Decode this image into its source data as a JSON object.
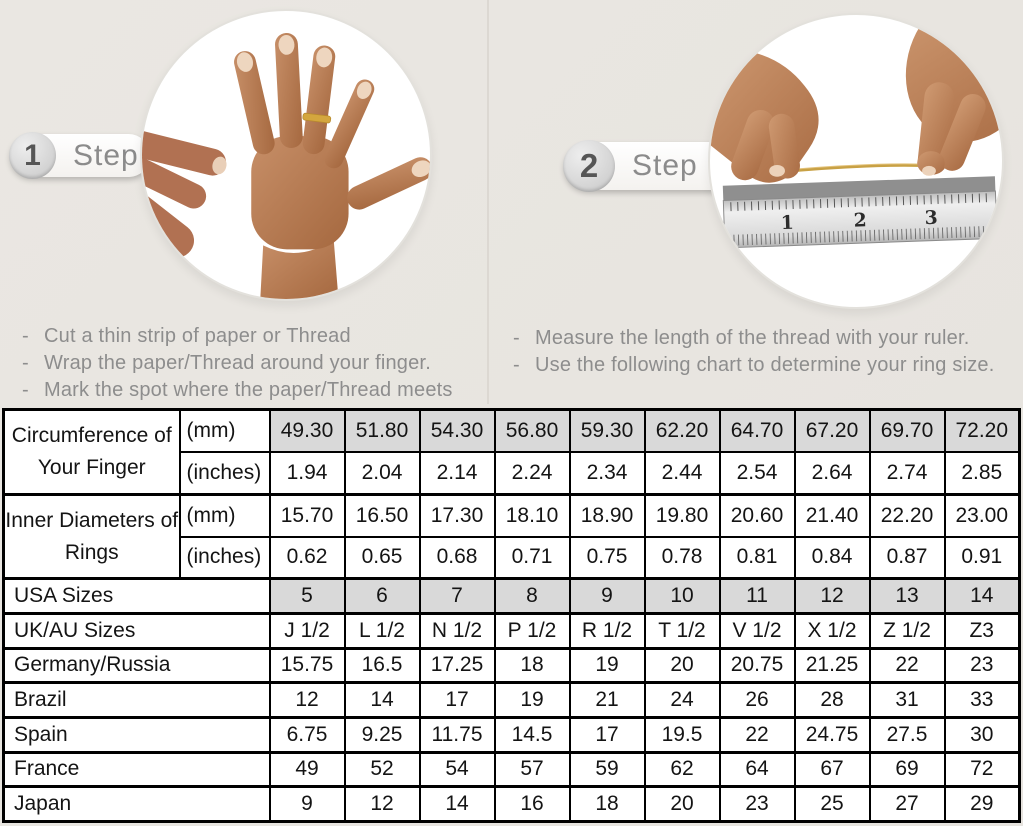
{
  "colors": {
    "background": "#e9e6e1",
    "table_border": "#000000",
    "shaded_cell": "#d9d9d9",
    "instruction_text": "#8d8d8d",
    "gold_thread": "#c8a145",
    "skin_tone": "#b5795a"
  },
  "steps": [
    {
      "number": "1",
      "label": "Step",
      "photo": "hand-with-ring-on-finger",
      "instructions": [
        "Cut a thin strip of paper or Thread",
        "Wrap the paper/Thread around your finger.",
        "Mark the spot where the paper/Thread meets"
      ]
    },
    {
      "number": "2",
      "label": "Step",
      "photo": "measuring-thread-on-ruler",
      "ruler_numbers": [
        "1",
        "2",
        "3"
      ],
      "instructions": [
        "Measure the length of the thread with your ruler.",
        "Use the following chart to determine your ring size."
      ]
    }
  ],
  "size_chart": {
    "columns": 10,
    "measure_groups": [
      {
        "label": "Circumference of Your Finger",
        "rows": [
          {
            "unit": "(mm)",
            "shaded": true,
            "values": [
              "49.30",
              "51.80",
              "54.30",
              "56.80",
              "59.30",
              "62.20",
              "64.70",
              "67.20",
              "69.70",
              "72.20"
            ]
          },
          {
            "unit": "(inches)",
            "shaded": false,
            "values": [
              "1.94",
              "2.04",
              "2.14",
              "2.24",
              "2.34",
              "2.44",
              "2.54",
              "2.64",
              "2.74",
              "2.85"
            ]
          }
        ]
      },
      {
        "label": "Inner Diameters of Rings",
        "rows": [
          {
            "unit": "(mm)",
            "shaded": false,
            "values": [
              "15.70",
              "16.50",
              "17.30",
              "18.10",
              "18.90",
              "19.80",
              "20.60",
              "21.40",
              "22.20",
              "23.00"
            ]
          },
          {
            "unit": "(inches)",
            "shaded": false,
            "values": [
              "0.62",
              "0.65",
              "0.68",
              "0.71",
              "0.75",
              "0.78",
              "0.81",
              "0.84",
              "0.87",
              "0.91"
            ]
          }
        ]
      }
    ],
    "region_rows": [
      {
        "label": "USA Sizes",
        "shaded": true,
        "values": [
          "5",
          "6",
          "7",
          "8",
          "9",
          "10",
          "11",
          "12",
          "13",
          "14"
        ]
      },
      {
        "label": "UK/AU Sizes",
        "shaded": false,
        "values": [
          "J 1/2",
          "L 1/2",
          "N 1/2",
          "P 1/2",
          "R 1/2",
          "T 1/2",
          "V 1/2",
          "X 1/2",
          "Z 1/2",
          "Z3"
        ]
      },
      {
        "label": "Germany/Russia",
        "shaded": false,
        "values": [
          "15.75",
          "16.5",
          "17.25",
          "18",
          "19",
          "20",
          "20.75",
          "21.25",
          "22",
          "23"
        ]
      },
      {
        "label": "Brazil",
        "shaded": false,
        "values": [
          "12",
          "14",
          "17",
          "19",
          "21",
          "24",
          "26",
          "28",
          "31",
          "33"
        ]
      },
      {
        "label": "Spain",
        "shaded": false,
        "values": [
          "6.75",
          "9.25",
          "11.75",
          "14.5",
          "17",
          "19.5",
          "22",
          "24.75",
          "27.5",
          "30"
        ]
      },
      {
        "label": "France",
        "shaded": false,
        "values": [
          "49",
          "52",
          "54",
          "57",
          "59",
          "62",
          "64",
          "67",
          "69",
          "72"
        ]
      },
      {
        "label": "Japan",
        "shaded": false,
        "values": [
          "9",
          "12",
          "14",
          "16",
          "18",
          "20",
          "23",
          "25",
          "27",
          "29"
        ]
      }
    ]
  }
}
